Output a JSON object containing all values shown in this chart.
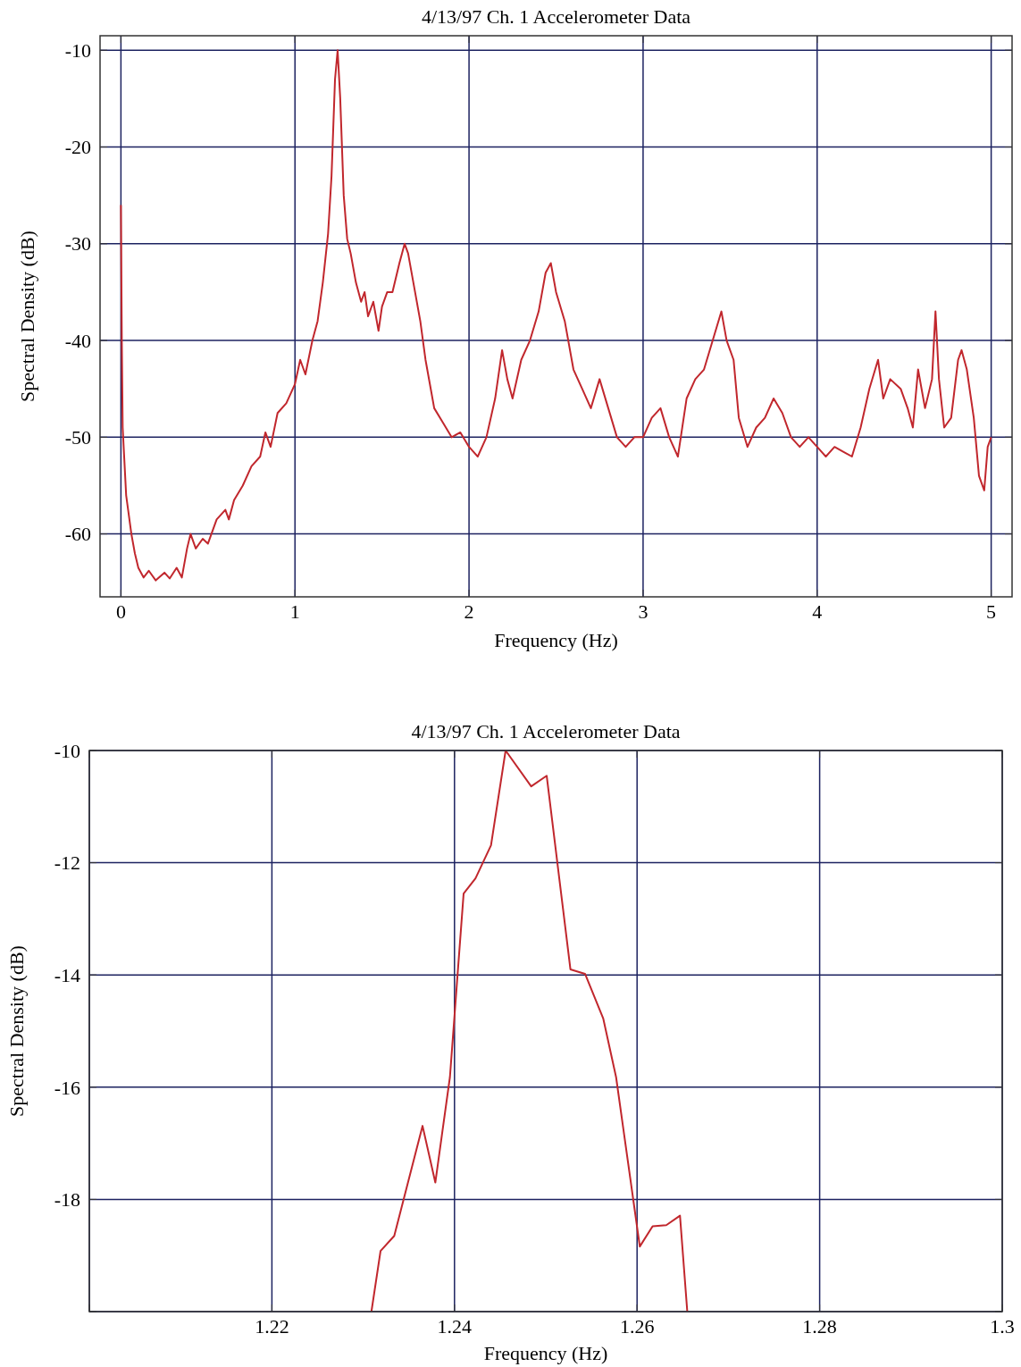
{
  "chart_data": [
    {
      "type": "line",
      "title": "4/13/97 Ch. 1 Accelerometer Data",
      "xlabel": "Frequency (Hz)",
      "ylabel": "Spectral Density (dB)",
      "xlim": [
        -0.12,
        5.12
      ],
      "ylim": [
        -66.5,
        -8.5
      ],
      "xticks": [
        0,
        1,
        2,
        3,
        4,
        5
      ],
      "yticks": [
        -10,
        -20,
        -30,
        -40,
        -50,
        -60
      ],
      "grid": true,
      "series": [
        {
          "color": "#c1272d",
          "x": [
            0,
            0.005,
            0.01,
            0.03,
            0.06,
            0.08,
            0.1,
            0.13,
            0.16,
            0.2,
            0.25,
            0.28,
            0.32,
            0.35,
            0.38,
            0.4,
            0.43,
            0.47,
            0.5,
            0.55,
            0.6,
            0.62,
            0.65,
            0.7,
            0.75,
            0.8,
            0.83,
            0.86,
            0.9,
            0.95,
            1.0,
            1.03,
            1.06,
            1.1,
            1.13,
            1.16,
            1.19,
            1.21,
            1.23,
            1.245,
            1.26,
            1.28,
            1.3,
            1.32,
            1.35,
            1.38,
            1.4,
            1.42,
            1.45,
            1.48,
            1.5,
            1.53,
            1.56,
            1.6,
            1.63,
            1.65,
            1.68,
            1.72,
            1.75,
            1.78,
            1.8,
            1.85,
            1.9,
            1.95,
            2.0,
            2.05,
            2.1,
            2.15,
            2.19,
            2.22,
            2.25,
            2.3,
            2.35,
            2.4,
            2.44,
            2.47,
            2.5,
            2.55,
            2.6,
            2.65,
            2.7,
            2.75,
            2.8,
            2.85,
            2.9,
            2.95,
            3.0,
            3.05,
            3.1,
            3.15,
            3.2,
            3.25,
            3.3,
            3.35,
            3.4,
            3.45,
            3.48,
            3.52,
            3.55,
            3.6,
            3.65,
            3.7,
            3.75,
            3.8,
            3.85,
            3.9,
            3.95,
            4.0,
            4.05,
            4.1,
            4.15,
            4.2,
            4.25,
            4.3,
            4.35,
            4.38,
            4.42,
            4.48,
            4.52,
            4.55,
            4.58,
            4.62,
            4.66,
            4.68,
            4.7,
            4.73,
            4.77,
            4.81,
            4.83,
            4.86,
            4.9,
            4.93,
            4.96,
            4.98,
            5.0
          ],
          "values": [
            -26,
            -40,
            -49,
            -56,
            -60,
            -62,
            -63.5,
            -64.5,
            -63.8,
            -64.8,
            -64,
            -64.6,
            -63.5,
            -64.5,
            -61.5,
            -60,
            -61.5,
            -60.5,
            -61,
            -58.5,
            -57.5,
            -58.5,
            -56.5,
            -55,
            -53,
            -52,
            -49.5,
            -51,
            -47.5,
            -46.5,
            -44.5,
            -42,
            -43.5,
            -40,
            -38,
            -34,
            -29,
            -23,
            -13,
            -10,
            -15,
            -25,
            -29.5,
            -31,
            -34,
            -36,
            -35,
            -37.5,
            -36,
            -39,
            -36.5,
            -35,
            -35,
            -32,
            -30,
            -31,
            -34,
            -38,
            -42,
            -45,
            -47,
            -48.5,
            -50,
            -49.5,
            -51,
            -52,
            -50,
            -46,
            -41,
            -44,
            -46,
            -42,
            -40,
            -37,
            -33,
            -32,
            -35,
            -38,
            -43,
            -45,
            -47,
            -44,
            -47,
            -50,
            -51,
            -50,
            -50,
            -48,
            -47,
            -50,
            -52,
            -46,
            -44,
            -43,
            -40,
            -37,
            -40,
            -42,
            -48,
            -51,
            -49,
            -48,
            -46,
            -47.5,
            -50,
            -51,
            -50,
            -51,
            -52,
            -51,
            -51.5,
            -52,
            -49,
            -45,
            -42,
            -46,
            -44,
            -45,
            -47,
            -49,
            -43,
            -47,
            -44,
            -37,
            -44,
            -49,
            -48,
            -42,
            -41,
            -43,
            -48,
            -54,
            -55.5,
            -51,
            -50
          ]
        }
      ]
    },
    {
      "type": "line",
      "title": "4/13/97 Ch. 1 Accelerometer Data",
      "xlabel": "Frequency (Hz)",
      "ylabel": "Spectral Density (dB)",
      "xlim": [
        1.2,
        1.3
      ],
      "ylim": [
        -20,
        -10
      ],
      "xticks": [
        {
          "value": 1.2,
          "label": null
        },
        1.22,
        1.24,
        1.26,
        1.28,
        1.3
      ],
      "yticks": [
        {
          "value": -20,
          "label": null
        },
        -18,
        -16,
        -14,
        -12,
        -10
      ],
      "grid": true,
      "series": [
        {
          "color": "#c1272d",
          "x": [
            1.2309,
            1.2319,
            1.2334,
            1.2365,
            1.2379,
            1.2395,
            1.241,
            1.2423,
            1.244,
            1.2456,
            1.2484,
            1.2501,
            1.2527,
            1.2543,
            1.2563,
            1.2577,
            1.2603,
            1.2617,
            1.2632,
            1.2647,
            1.2655
          ],
          "values": [
            -20,
            -18.92,
            -18.65,
            -16.69,
            -17.7,
            -15.82,
            -12.55,
            -12.28,
            -11.69,
            -10,
            -10.64,
            -10.45,
            -13.9,
            -13.98,
            -14.78,
            -15.82,
            -18.84,
            -18.48,
            -18.46,
            -18.29,
            -20
          ]
        }
      ]
    }
  ]
}
